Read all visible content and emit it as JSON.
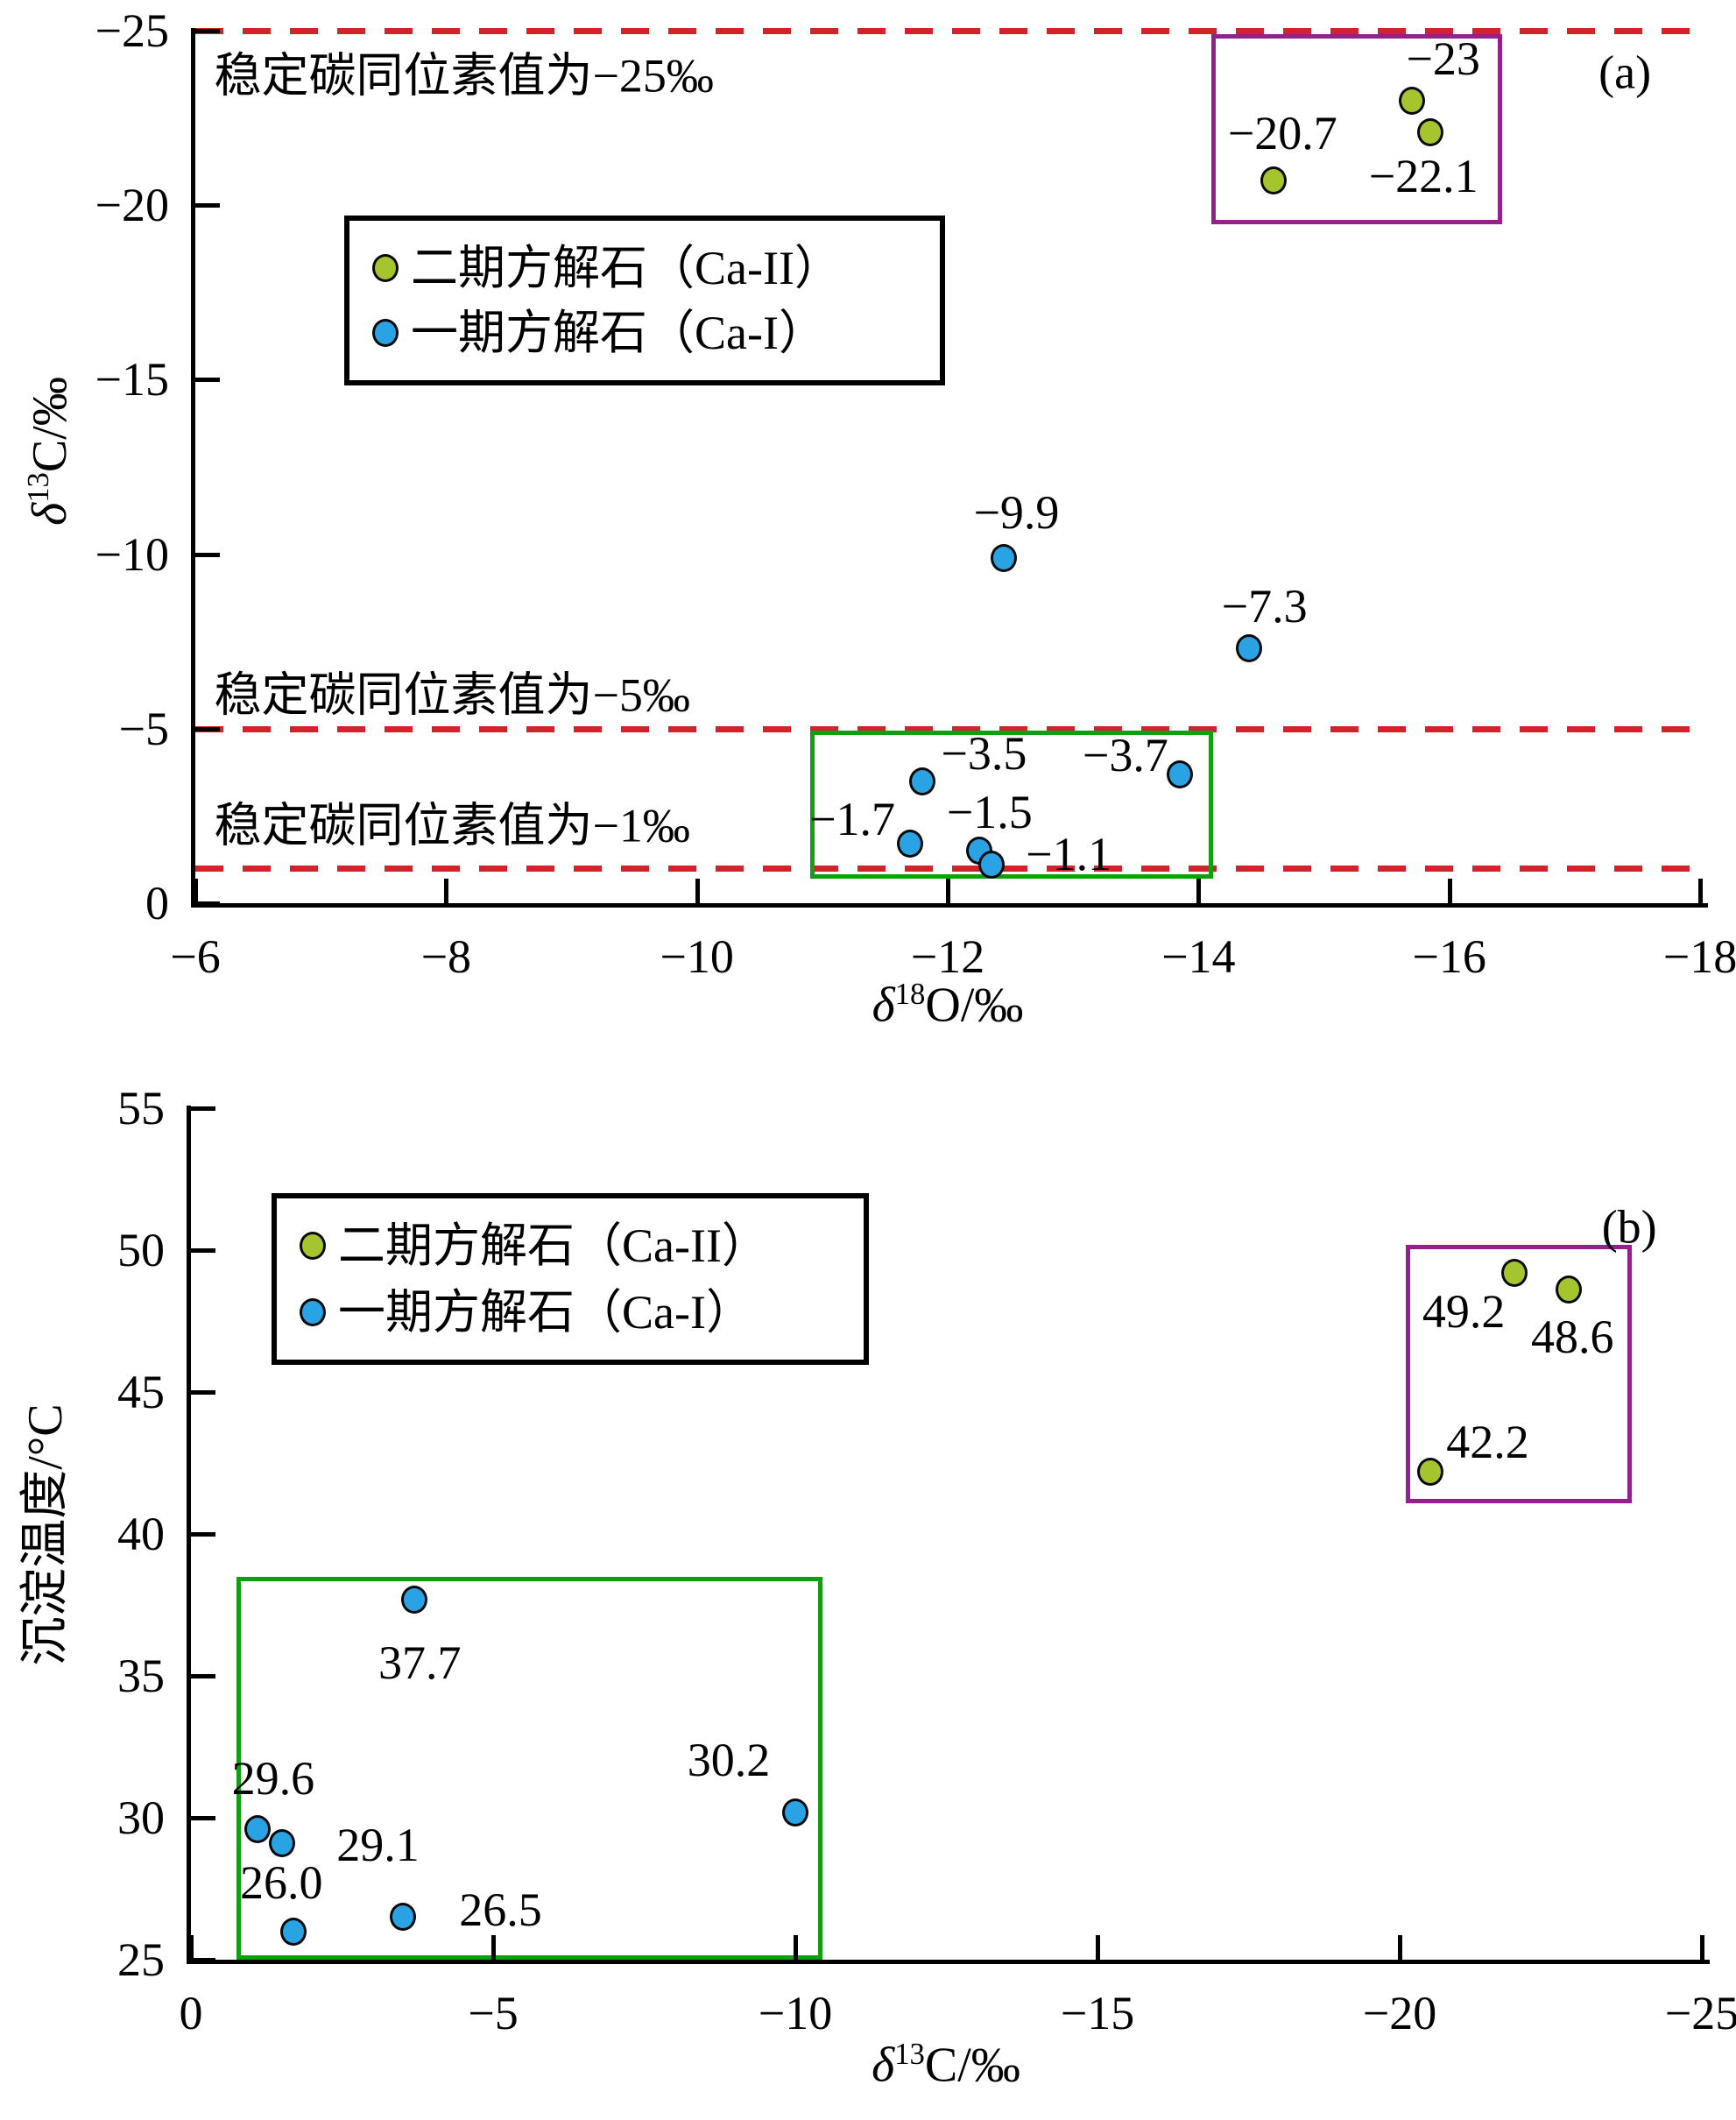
{
  "figure": {
    "background": "#ffffff",
    "panels": [
      "(a)",
      "(b)"
    ]
  },
  "colors": {
    "ca2": "#A5C52E",
    "ca1": "#29A3E4",
    "ref_line": "#D2232A",
    "box_purple": "#92218E",
    "box_green": "#0FA00F",
    "axis": "#000000"
  },
  "legend": {
    "items": [
      {
        "key": "ca2",
        "label": "二期方解石（Ca-II）"
      },
      {
        "key": "ca1",
        "label": "一期方解石（Ca-I）"
      }
    ]
  },
  "chart_data": [
    {
      "id": "a",
      "type": "scatter",
      "panel_label": "(a)",
      "x_axis": {
        "sym": "δ",
        "sup": "18",
        "rest": "O/‰",
        "title": "δ18O/‰",
        "min": -6,
        "max": -18,
        "ticks": [
          -6,
          -8,
          -10,
          -12,
          -14,
          -16,
          -18
        ]
      },
      "y_axis": {
        "sym": "δ",
        "sup": "13",
        "rest": "C/‰",
        "title": "δ13C/‰",
        "min": 0,
        "max": -25,
        "ticks": [
          -25,
          -20,
          -15,
          -10,
          -5,
          0
        ]
      },
      "grid": false,
      "series": [
        {
          "key": "ca2",
          "name": "二期方解石（Ca-II）",
          "points": [
            {
              "x": -15.7,
              "y": -23,
              "label": "−23",
              "dx": 36,
              "dy": -48
            },
            {
              "x": -15.85,
              "y": -22.1,
              "label": "−22.1",
              "dx": -8,
              "dy": 50
            },
            {
              "x": -14.6,
              "y": -20.7,
              "label": "−20.7",
              "dx": 10,
              "dy": -54
            }
          ]
        },
        {
          "key": "ca1",
          "name": "一期方解石（Ca-I）",
          "points": [
            {
              "x": -12.45,
              "y": -9.9,
              "label": "−9.9",
              "dx": 14,
              "dy": -52
            },
            {
              "x": -14.4,
              "y": -7.3,
              "label": "−7.3",
              "dx": 18,
              "dy": -48
            },
            {
              "x": -11.8,
              "y": -3.5,
              "label": "−3.5",
              "dx": 70,
              "dy": -32
            },
            {
              "x": -13.85,
              "y": -3.7,
              "label": "−3.7",
              "dx": -62,
              "dy": -22
            },
            {
              "x": -11.7,
              "y": -1.7,
              "label": "−1.7",
              "dx": -66,
              "dy": -28
            },
            {
              "x": -12.25,
              "y": -1.5,
              "label": "−1.5",
              "dx": 12,
              "dy": -44
            },
            {
              "x": -12.35,
              "y": -1.1,
              "label": "−1.1",
              "dx": 88,
              "dy": -12
            }
          ]
        }
      ],
      "ref_lines": [
        {
          "y": -25,
          "label": "稳定碳同位素值为−25‰",
          "label_anchor": {
            "x": -6.15,
            "y": -23.7
          }
        },
        {
          "y": -5,
          "label": "稳定碳同位素值为−5‰",
          "label_anchor": {
            "x": -6.15,
            "y": -5.95
          }
        },
        {
          "y": -1,
          "label": "稳定碳同位素值为−1‰",
          "label_anchor": {
            "x": -6.15,
            "y": -2.2
          }
        }
      ],
      "boxes": [
        {
          "x1": -14.1,
          "x2": -16.35,
          "y1": -24.9,
          "y2": -19.7,
          "color": "box_purple"
        },
        {
          "x1": -10.9,
          "x2": -14.05,
          "y1": -4.95,
          "y2": -0.95,
          "color": "box_green"
        }
      ],
      "annotations": [
        {
          "text": "(a)",
          "x": -17.4,
          "y": -23.8
        }
      ]
    },
    {
      "id": "b",
      "type": "scatter",
      "panel_label": "(b)",
      "x_axis": {
        "sym": "δ",
        "sup": "13",
        "rest": "C/‰",
        "title": "δ13C/‰",
        "min": 0,
        "max": -25,
        "ticks": [
          0,
          -5,
          -10,
          -15,
          -20,
          -25
        ]
      },
      "y_axis": {
        "title": "沉淀温度/°C",
        "min": 25,
        "max": 55,
        "ticks": [
          25,
          30,
          35,
          40,
          45,
          50,
          55
        ]
      },
      "grid": false,
      "series": [
        {
          "key": "ca2",
          "name": "二期方解石（Ca-II）",
          "points": [
            {
              "x": -21.9,
              "y": 49.2,
              "label": "49.2",
              "dx": -58,
              "dy": 44
            },
            {
              "x": -22.8,
              "y": 48.6,
              "label": "48.6",
              "dx": 4,
              "dy": 54
            },
            {
              "x": -20.5,
              "y": 42.2,
              "label": "42.2",
              "dx": 66,
              "dy": -34
            }
          ]
        },
        {
          "key": "ca1",
          "name": "一期方解石（Ca-I）",
          "points": [
            {
              "x": -3.7,
              "y": 37.7,
              "label": "37.7",
              "dx": 6,
              "dy": 72
            },
            {
              "x": -1.1,
              "y": 29.6,
              "label": "29.6",
              "dx": 18,
              "dy": -58
            },
            {
              "x": -1.5,
              "y": 29.1,
              "label": "29.1",
              "dx": 110,
              "dy": 2
            },
            {
              "x": -1.7,
              "y": 26.0,
              "label": "26.0",
              "dx": -14,
              "dy": -56
            },
            {
              "x": -3.5,
              "y": 26.5,
              "label": "26.5",
              "dx": 112,
              "dy": -8
            },
            {
              "x": -10.0,
              "y": 30.2,
              "label": "30.2",
              "dx": -76,
              "dy": -60
            }
          ]
        }
      ],
      "ref_lines": [],
      "boxes": [
        {
          "x1": -20.1,
          "x2": -23.7,
          "y1": 41.4,
          "y2": 50.2,
          "color": "box_purple"
        },
        {
          "x1": -0.75,
          "x2": -10.3,
          "y1": 25.3,
          "y2": 38.5,
          "color": "box_green"
        }
      ],
      "annotations": [
        {
          "text": "(b)",
          "x": -23.8,
          "y": 50.8
        }
      ]
    }
  ]
}
